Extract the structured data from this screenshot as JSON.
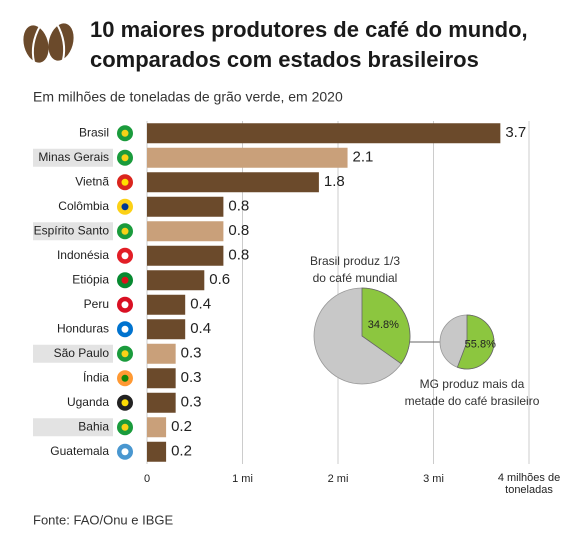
{
  "chart_data": [
    {
      "type": "bar",
      "title": [
        "10 maiores produtores de café do mundo,",
        "comparados com estados brasileiros"
      ],
      "subtitle": "Em milhões de toneladas de grão verde, em 2020",
      "source": "Fonte: FAO/Onu e IBGE",
      "categories": [
        "Brasil",
        "Minas Gerais",
        "Vietnã",
        "Colômbia",
        "Espírito Santo",
        "Indonésia",
        "Etiópia",
        "Peru",
        "Honduras",
        "São Paulo",
        "Índia",
        "Uganda",
        "Bahia",
        "Guatemala"
      ],
      "values": [
        3.7,
        2.1,
        1.8,
        0.8,
        0.8,
        0.8,
        0.6,
        0.4,
        0.4,
        0.3,
        0.3,
        0.3,
        0.2,
        0.2
      ],
      "colors": [
        "#6b4a2b",
        "#c9a07a",
        "#6b4a2b",
        "#6b4a2b",
        "#c9a07a",
        "#6b4a2b",
        "#6b4a2b",
        "#6b4a2b",
        "#6b4a2b",
        "#c9a07a",
        "#6b4a2b",
        "#6b4a2b",
        "#c9a07a",
        "#6b4a2b"
      ],
      "highlighted": [
        false,
        true,
        false,
        false,
        true,
        false,
        false,
        false,
        false,
        true,
        false,
        false,
        true,
        false
      ],
      "orientation": "horizontal",
      "xlim": [
        0,
        4
      ],
      "xticks": [
        0,
        {
          "value": 1,
          "label": "1 mi"
        },
        {
          "value": 2,
          "label": "2 mi"
        },
        {
          "value": 3,
          "label": "3 mi"
        },
        {
          "value": 4,
          "label": "4 milhões de toneladas"
        }
      ],
      "grid": true
    },
    {
      "type": "pie",
      "annotation": [
        "Brasil produz 1/3",
        "do café mundial"
      ],
      "values": [
        34.8
      ],
      "value_labels": [
        "34.8%"
      ],
      "color": "#8cc63f"
    },
    {
      "type": "pie",
      "annotation": [
        "MG produz mais da",
        "metade do café brasileiro"
      ],
      "values": [
        55.8
      ],
      "value_labels": [
        "55.8%"
      ],
      "color": "#8cc63f"
    }
  ]
}
